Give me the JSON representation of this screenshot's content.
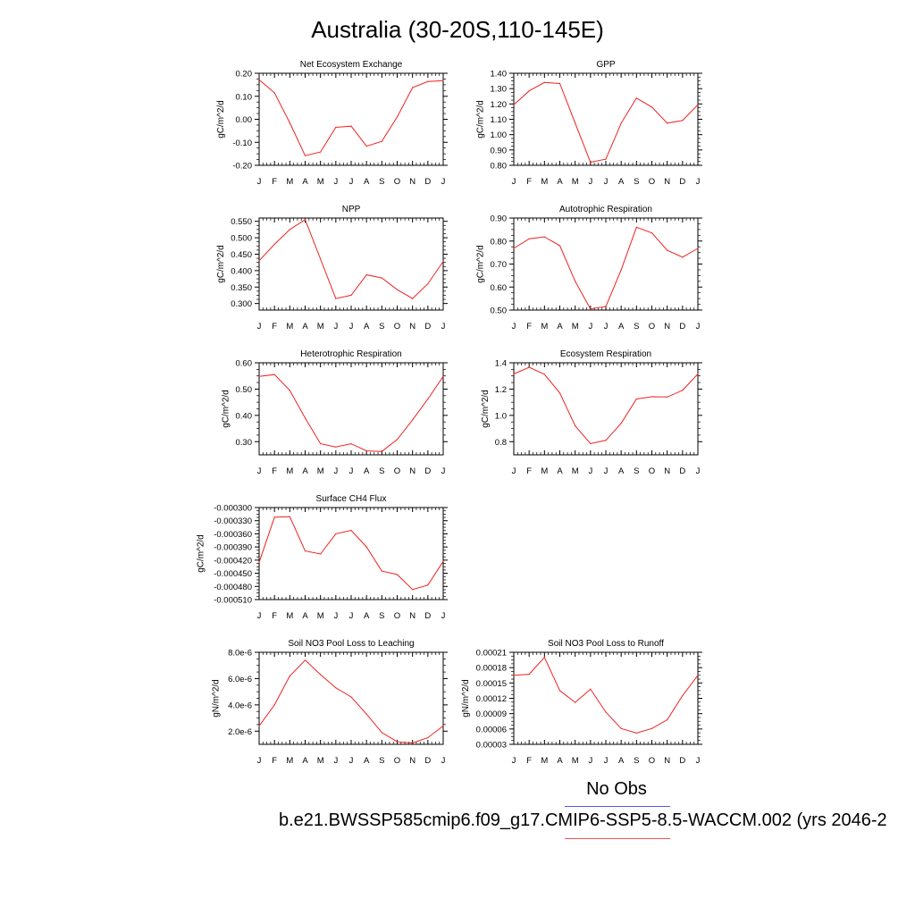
{
  "title": "Australia (30-20S,110-145E)",
  "legend": {
    "obs_label": "No Obs",
    "case_label": "b.e21.BWSSP585cmip6.f09_g17.CMIP6-SSP5-8.5-WACCM.002 (yrs 2046-2",
    "obs_color": "#5555ee",
    "case_color": "#ee5555"
  },
  "chart_data": [
    {
      "type": "line",
      "title": "Net Ecosystem Exchange",
      "ylabel": "gC/m^2/d",
      "x": [
        "J",
        "F",
        "M",
        "A",
        "M",
        "J",
        "J",
        "A",
        "S",
        "O",
        "N",
        "D",
        "J"
      ],
      "ylim": [
        -0.2,
        0.2
      ],
      "yticks": [
        "0.20",
        "0.10",
        "0.00",
        "-0.10",
        "-0.20"
      ],
      "series": [
        {
          "values": [
            0.172,
            0.115,
            -0.015,
            -0.158,
            -0.142,
            -0.035,
            -0.03,
            -0.117,
            -0.096,
            0.01,
            0.138,
            0.164,
            0.168
          ]
        }
      ]
    },
    {
      "type": "line",
      "title": "GPP",
      "ylabel": "gC/m^2/d",
      "x": [
        "J",
        "F",
        "M",
        "A",
        "M",
        "J",
        "J",
        "A",
        "S",
        "O",
        "N",
        "D",
        "J"
      ],
      "ylim": [
        0.8,
        1.4
      ],
      "yticks": [
        "1.40",
        "1.30",
        "1.20",
        "1.10",
        "1.00",
        "0.90",
        "0.80"
      ],
      "series": [
        {
          "values": [
            1.195,
            1.285,
            1.34,
            1.333,
            1.075,
            0.82,
            0.84,
            1.075,
            1.238,
            1.18,
            1.075,
            1.092,
            1.195
          ]
        }
      ]
    },
    {
      "type": "line",
      "title": "NPP",
      "ylabel": "gC/m^2/d",
      "x": [
        "J",
        "F",
        "M",
        "A",
        "M",
        "J",
        "J",
        "A",
        "S",
        "O",
        "N",
        "D",
        "J"
      ],
      "ylim": [
        0.28,
        0.56
      ],
      "yticks": [
        "0.550",
        "0.500",
        "0.450",
        "0.400",
        "0.350",
        "0.300"
      ],
      "series": [
        {
          "values": [
            0.43,
            0.48,
            0.525,
            0.555,
            0.435,
            0.315,
            0.325,
            0.387,
            0.378,
            0.342,
            0.315,
            0.36,
            0.428
          ]
        }
      ]
    },
    {
      "type": "line",
      "title": "Autotrophic Respiration",
      "ylabel": "gC/m^2/d",
      "x": [
        "J",
        "F",
        "M",
        "A",
        "M",
        "J",
        "J",
        "A",
        "S",
        "O",
        "N",
        "D",
        "J"
      ],
      "ylim": [
        0.5,
        0.9
      ],
      "yticks": [
        "0.90",
        "0.80",
        "0.70",
        "0.60",
        "0.50"
      ],
      "series": [
        {
          "values": [
            0.768,
            0.81,
            0.818,
            0.78,
            0.625,
            0.505,
            0.515,
            0.675,
            0.86,
            0.835,
            0.76,
            0.73,
            0.768
          ]
        }
      ]
    },
    {
      "type": "line",
      "title": "Heterotrophic Respiration",
      "ylabel": "gC/m^2/d",
      "x": [
        "J",
        "F",
        "M",
        "A",
        "M",
        "J",
        "J",
        "A",
        "S",
        "O",
        "N",
        "D",
        "J"
      ],
      "ylim": [
        0.25,
        0.6
      ],
      "yticks": [
        "0.60",
        "0.50",
        "0.40",
        "0.30"
      ],
      "series": [
        {
          "values": [
            0.548,
            0.555,
            0.495,
            0.39,
            0.292,
            0.28,
            0.292,
            0.265,
            0.263,
            0.308,
            0.383,
            0.462,
            0.548
          ]
        }
      ]
    },
    {
      "type": "line",
      "title": "Ecosystem Respiration",
      "ylabel": "gC/m^2/d",
      "x": [
        "J",
        "F",
        "M",
        "A",
        "M",
        "J",
        "J",
        "A",
        "S",
        "O",
        "N",
        "D",
        "J"
      ],
      "ylim": [
        0.7,
        1.4
      ],
      "yticks": [
        "1.4",
        "1.2",
        "1.0",
        "0.8"
      ],
      "series": [
        {
          "values": [
            1.315,
            1.365,
            1.312,
            1.17,
            0.92,
            0.785,
            0.81,
            0.94,
            1.125,
            1.142,
            1.14,
            1.19,
            1.315
          ]
        }
      ]
    },
    {
      "type": "line",
      "title": "Surface CH4 Flux",
      "ylabel": "gC/m^2/d",
      "x": [
        "J",
        "F",
        "M",
        "A",
        "M",
        "J",
        "J",
        "A",
        "S",
        "O",
        "N",
        "D",
        "J"
      ],
      "ylim": [
        -0.00051,
        -0.0003
      ],
      "yticks": [
        "-0.000300",
        "-0.000330",
        "-0.000360",
        "-0.000390",
        "-0.000420",
        "-0.000450",
        "-0.000480",
        "-0.000510"
      ],
      "series": [
        {
          "values": [
            -0.000425,
            -0.000322,
            -0.000321,
            -0.000399,
            -0.000406,
            -0.00036,
            -0.000352,
            -0.00039,
            -0.000445,
            -0.000453,
            -0.000487,
            -0.000477,
            -0.000423
          ]
        }
      ]
    },
    {
      "type": "line",
      "title": "Soil NO3 Pool Loss to Leaching",
      "ylabel": "gN/m^2/d",
      "x": [
        "J",
        "F",
        "M",
        "A",
        "M",
        "J",
        "J",
        "A",
        "S",
        "O",
        "N",
        "D",
        "J"
      ],
      "ylim": [
        1e-06,
        8e-06
      ],
      "yticks": [
        "8.0e-6",
        "6.0e-6",
        "4.0e-6",
        "2.0e-6"
      ],
      "series": [
        {
          "values": [
            2.4e-06,
            4e-06,
            6.2e-06,
            7.4e-06,
            6.3e-06,
            5.3e-06,
            4.6e-06,
            3.3e-06,
            1.9e-06,
            1.2e-06,
            1.1e-06,
            1.5e-06,
            2.4e-06
          ]
        }
      ]
    },
    {
      "type": "line",
      "title": "Soil NO3 Pool Loss to Runoff",
      "ylabel": "gN/m^2/d",
      "x": [
        "J",
        "F",
        "M",
        "A",
        "M",
        "J",
        "J",
        "A",
        "S",
        "O",
        "N",
        "D",
        "J"
      ],
      "ylim": [
        3e-05,
        0.00021
      ],
      "yticks": [
        "0.00021",
        "0.00018",
        "0.00015",
        "0.00012",
        "0.00009",
        "0.00006",
        "0.00003"
      ],
      "series": [
        {
          "values": [
            0.000165,
            0.000167,
            0.0002,
            0.000135,
            0.000112,
            0.000138,
            9.3e-05,
            6.1e-05,
            5.2e-05,
            6.1e-05,
            7.8e-05,
            0.000125,
            0.000165
          ]
        }
      ]
    }
  ]
}
